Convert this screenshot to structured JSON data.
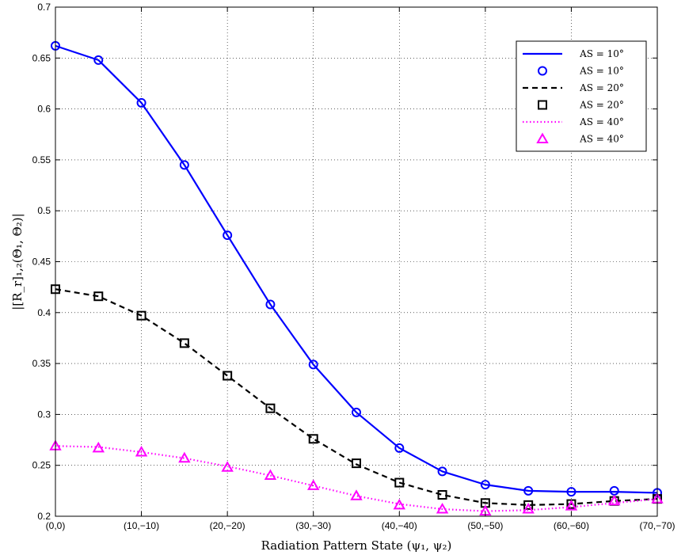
{
  "chart_data": {
    "type": "line",
    "title": "",
    "xlabel": "Radiation Pattern State (ψ₁, ψ₂)",
    "ylabel": "|[R_r]₁,₂(Θ₁, Θ₂)|",
    "x": [
      0,
      5,
      10,
      15,
      20,
      25,
      30,
      35,
      40,
      45,
      50,
      55,
      60,
      65,
      70
    ],
    "xticks": [
      0,
      10,
      20,
      30,
      40,
      50,
      60,
      70
    ],
    "xtick_labels": [
      "(0,0)",
      "(10,−10)",
      "(20,−20)",
      "(30,−30)",
      "(40,−40)",
      "(50,−50)",
      "(60,−60)",
      "(70,−70)"
    ],
    "xlim": [
      0,
      70
    ],
    "ylim": [
      0.2,
      0.7
    ],
    "yticks": [
      0.2,
      0.25,
      0.3,
      0.35,
      0.4,
      0.45,
      0.5,
      0.55,
      0.6,
      0.65,
      0.7
    ],
    "ytick_labels": [
      "0.2",
      "0.25",
      "0.3",
      "0.35",
      "0.4",
      "0.45",
      "0.5",
      "0.55",
      "0.6",
      "0.65",
      "0.7"
    ],
    "grid": true,
    "legend_position": "top-right",
    "series": [
      {
        "name": "AS = 10°",
        "style": "line",
        "line": "solid",
        "color": "#0000ff",
        "values": [
          0.662,
          0.648,
          0.606,
          0.545,
          0.476,
          0.408,
          0.349,
          0.302,
          0.267,
          0.244,
          0.231,
          0.225,
          0.224,
          0.224,
          0.223
        ]
      },
      {
        "name": "AS = 10°",
        "style": "marker",
        "marker": "circle",
        "color": "#0000ff",
        "values": [
          0.662,
          0.648,
          0.606,
          0.545,
          0.476,
          0.408,
          0.349,
          0.302,
          0.267,
          0.244,
          0.231,
          0.225,
          0.224,
          0.225,
          0.223
        ]
      },
      {
        "name": "AS = 20°",
        "style": "line",
        "line": "dashed",
        "color": "#000000",
        "values": [
          0.423,
          0.416,
          0.397,
          0.37,
          0.338,
          0.306,
          0.276,
          0.251,
          0.233,
          0.221,
          0.213,
          0.211,
          0.212,
          0.215,
          0.217
        ]
      },
      {
        "name": "AS = 20°",
        "style": "marker",
        "marker": "square",
        "color": "#000000",
        "values": [
          0.423,
          0.416,
          0.397,
          0.37,
          0.338,
          0.306,
          0.276,
          0.252,
          0.233,
          0.221,
          0.213,
          0.211,
          0.212,
          0.215,
          0.217
        ]
      },
      {
        "name": "AS = 40°",
        "style": "line",
        "line": "dotted",
        "color": "#ff00ff",
        "values": [
          0.269,
          0.268,
          0.263,
          0.257,
          0.249,
          0.24,
          0.23,
          0.22,
          0.212,
          0.207,
          0.205,
          0.206,
          0.209,
          0.213,
          0.217
        ]
      },
      {
        "name": "AS = 40°",
        "style": "marker",
        "marker": "triangle",
        "color": "#ff00ff",
        "values": [
          0.269,
          0.267,
          0.263,
          0.257,
          0.248,
          0.24,
          0.23,
          0.22,
          0.211,
          0.207,
          0.205,
          0.207,
          0.21,
          0.215,
          0.217
        ]
      }
    ]
  }
}
